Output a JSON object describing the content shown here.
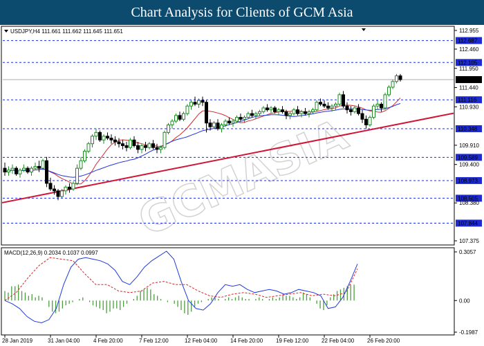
{
  "header": {
    "title": "Chart Analysis for Clients of GCM Asia"
  },
  "watermark": {
    "text": "GCMASIA"
  },
  "colors": {
    "banner": "#0c4a6e",
    "bull": "#1f8b24",
    "bear": "#000000",
    "ma_fast": "#d0302f",
    "ma_slow": "#2233dd",
    "trend": "#d01535",
    "level_line": "#1d2bd0",
    "macd_hist": "#4a9e3d",
    "macd_signal": "#e02020",
    "macd_line": "#1e3adf"
  },
  "chart_data": [
    {
      "type": "candlestick",
      "title": "",
      "info_label": "USDJPY,H4  111.661 111.662 111.645 111.651",
      "ylim": [
        107.375,
        112.955
      ],
      "y_ticks": [
        "112.955",
        "112.460",
        "111.950",
        "111.440",
        "110.930",
        "109.910",
        "109.400",
        "108.380",
        "107.375"
      ],
      "x_tick_labels": [
        "28 Jan 2019",
        "31 Jan 04:00",
        "4 Feb 20:00",
        "7 Feb 12:00",
        "12 Feb 04:00",
        "14 Feb 20:00",
        "19 Feb 12:00",
        "22 Feb 04:00",
        "26 Feb 20:00"
      ],
      "x_tick_index": [
        0,
        12,
        24,
        36,
        48,
        60,
        72,
        84,
        96
      ],
      "current_price": "111.651",
      "levels": [
        "112.687",
        "112.105",
        "111.116",
        "110.348",
        "109.589",
        "108.973",
        "108.505",
        "107.844"
      ],
      "trendline": {
        "from": {
          "index": 0,
          "price": 108.4
        },
        "to": {
          "index": 135,
          "price": 111.1
        }
      },
      "candles": [
        [
          109.3,
          109.45,
          109.1,
          109.2
        ],
        [
          109.2,
          109.35,
          109.1,
          109.25
        ],
        [
          109.25,
          109.4,
          109.15,
          109.3
        ],
        [
          109.3,
          109.35,
          109.1,
          109.15
        ],
        [
          109.15,
          109.3,
          109.05,
          109.25
        ],
        [
          109.25,
          109.4,
          109.2,
          109.3
        ],
        [
          109.3,
          109.35,
          109.15,
          109.2
        ],
        [
          109.2,
          109.35,
          109.1,
          109.3
        ],
        [
          109.3,
          109.45,
          109.25,
          109.35
        ],
        [
          109.35,
          109.5,
          109.2,
          109.3
        ],
        [
          109.3,
          109.55,
          109.25,
          109.5
        ],
        [
          109.5,
          109.6,
          108.8,
          108.9
        ],
        [
          108.9,
          109.05,
          108.7,
          108.75
        ],
        [
          108.75,
          108.85,
          108.6,
          108.7
        ],
        [
          108.7,
          108.75,
          108.45,
          108.55
        ],
        [
          108.55,
          108.75,
          108.5,
          108.7
        ],
        [
          108.7,
          108.85,
          108.6,
          108.8
        ],
        [
          108.8,
          108.9,
          108.65,
          108.75
        ],
        [
          108.75,
          108.95,
          108.7,
          108.9
        ],
        [
          108.9,
          109.4,
          108.85,
          109.3
        ],
        [
          109.3,
          109.6,
          109.25,
          109.5
        ],
        [
          109.5,
          109.8,
          109.45,
          109.75
        ],
        [
          109.75,
          110.0,
          109.7,
          109.95
        ],
        [
          109.95,
          110.2,
          109.85,
          110.15
        ],
        [
          110.15,
          110.35,
          110.05,
          110.25
        ],
        [
          110.25,
          110.3,
          110.0,
          110.05
        ],
        [
          110.05,
          110.2,
          109.95,
          110.15
        ],
        [
          110.15,
          110.25,
          110.05,
          110.1
        ],
        [
          110.1,
          110.2,
          109.95,
          110.05
        ],
        [
          110.05,
          110.15,
          109.9,
          110.0
        ],
        [
          110.0,
          110.1,
          109.85,
          109.95
        ],
        [
          109.95,
          110.05,
          109.8,
          109.9
        ],
        [
          109.9,
          110.0,
          109.75,
          109.85
        ],
        [
          109.85,
          110.1,
          109.8,
          110.05
        ],
        [
          110.05,
          110.15,
          109.85,
          109.9
        ],
        [
          109.9,
          110.0,
          109.7,
          109.8
        ],
        [
          109.8,
          109.95,
          109.7,
          109.9
        ],
        [
          109.9,
          110.0,
          109.75,
          109.85
        ],
        [
          109.85,
          110.0,
          109.8,
          109.95
        ],
        [
          109.95,
          110.05,
          109.8,
          109.85
        ],
        [
          109.85,
          109.95,
          109.7,
          109.8
        ],
        [
          109.8,
          109.9,
          109.7,
          109.85
        ],
        [
          109.85,
          110.3,
          109.8,
          110.25
        ],
        [
          110.25,
          110.5,
          110.2,
          110.45
        ],
        [
          110.45,
          110.6,
          110.35,
          110.55
        ],
        [
          110.55,
          110.75,
          110.5,
          110.7
        ],
        [
          110.7,
          110.8,
          110.55,
          110.6
        ],
        [
          110.6,
          110.8,
          110.55,
          110.75
        ],
        [
          110.75,
          111.0,
          110.7,
          110.95
        ],
        [
          110.95,
          111.1,
          110.85,
          111.05
        ],
        [
          111.05,
          111.2,
          110.95,
          111.0
        ],
        [
          111.0,
          111.15,
          110.9,
          111.1
        ],
        [
          111.1,
          111.2,
          110.95,
          111.05
        ],
        [
          111.05,
          111.1,
          110.25,
          110.5
        ],
        [
          110.5,
          110.6,
          110.3,
          110.4
        ],
        [
          110.4,
          110.55,
          110.35,
          110.5
        ],
        [
          110.5,
          110.6,
          110.3,
          110.35
        ],
        [
          110.35,
          110.5,
          110.25,
          110.45
        ],
        [
          110.45,
          110.6,
          110.4,
          110.55
        ],
        [
          110.55,
          110.65,
          110.45,
          110.5
        ],
        [
          110.5,
          110.6,
          110.4,
          110.55
        ],
        [
          110.55,
          110.7,
          110.5,
          110.65
        ],
        [
          110.65,
          110.75,
          110.55,
          110.6
        ],
        [
          110.6,
          110.7,
          110.5,
          110.65
        ],
        [
          110.65,
          110.8,
          110.6,
          110.75
        ],
        [
          110.75,
          110.85,
          110.65,
          110.7
        ],
        [
          110.7,
          110.8,
          110.6,
          110.75
        ],
        [
          110.75,
          110.85,
          110.7,
          110.8
        ],
        [
          110.8,
          110.95,
          110.75,
          110.9
        ],
        [
          110.9,
          111.0,
          110.8,
          110.85
        ],
        [
          110.85,
          110.95,
          110.75,
          110.9
        ],
        [
          110.9,
          110.95,
          110.75,
          110.8
        ],
        [
          110.8,
          110.9,
          110.7,
          110.85
        ],
        [
          110.85,
          110.95,
          110.75,
          110.8
        ],
        [
          110.8,
          110.85,
          110.6,
          110.7
        ],
        [
          110.7,
          110.8,
          110.6,
          110.75
        ],
        [
          110.75,
          110.9,
          110.7,
          110.85
        ],
        [
          110.85,
          110.95,
          110.7,
          110.75
        ],
        [
          110.75,
          110.85,
          110.65,
          110.8
        ],
        [
          110.8,
          110.9,
          110.7,
          110.75
        ],
        [
          110.75,
          110.85,
          110.65,
          110.8
        ],
        [
          110.8,
          110.9,
          110.75,
          110.85
        ],
        [
          110.85,
          111.1,
          110.8,
          111.05
        ],
        [
          111.05,
          111.15,
          110.95,
          111.0
        ],
        [
          111.0,
          111.1,
          110.9,
          110.95
        ],
        [
          110.95,
          111.05,
          110.85,
          110.9
        ],
        [
          110.9,
          111.0,
          110.8,
          110.95
        ],
        [
          110.95,
          111.05,
          110.85,
          111.0
        ],
        [
          111.0,
          111.3,
          110.95,
          111.25
        ],
        [
          111.25,
          111.35,
          110.9,
          110.95
        ],
        [
          110.95,
          111.05,
          110.75,
          110.85
        ],
        [
          110.85,
          110.95,
          110.7,
          110.8
        ],
        [
          110.8,
          110.95,
          110.75,
          110.9
        ],
        [
          110.9,
          111.0,
          110.7,
          110.75
        ],
        [
          110.75,
          110.85,
          110.5,
          110.6
        ],
        [
          110.6,
          110.7,
          110.35,
          110.45
        ],
        [
          110.45,
          110.7,
          110.4,
          110.65
        ],
        [
          110.65,
          111.0,
          110.6,
          110.95
        ],
        [
          110.95,
          111.1,
          110.85,
          111.0
        ],
        [
          111.0,
          111.05,
          110.8,
          110.9
        ],
        [
          110.9,
          111.3,
          110.85,
          111.25
        ],
        [
          111.25,
          111.5,
          111.2,
          111.45
        ],
        [
          111.45,
          111.65,
          111.4,
          111.6
        ],
        [
          111.6,
          111.8,
          111.55,
          111.75
        ],
        [
          111.75,
          111.8,
          111.6,
          111.651
        ]
      ]
    },
    {
      "type": "line",
      "title": "",
      "info_label": "MACD(12,26,9)  0.2034  0.1037  0.0997",
      "ylim": [
        -0.1987,
        0.3057
      ],
      "y_ticks": [
        "0.3057",
        "0.00",
        "-0.1987"
      ],
      "series": [
        {
          "values": [
            0.0,
            0.05,
            0.14,
            0.22,
            0.27,
            0.26,
            0.25,
            0.17,
            0.1,
            0.1,
            0.06,
            0.05,
            0.06,
            0.11,
            0.12,
            0.1,
            0.1,
            0.06,
            0.03,
            0.02,
            0.04,
            0.05,
            0.04,
            0.02,
            0.03,
            0.04,
            0.05,
            0.03,
            0.04,
            0.03,
            0.05,
            0.2
          ]
        },
        {
          "values": [
            0.0,
            -0.02,
            -0.05,
            -0.1,
            -0.13,
            -0.14,
            -0.12,
            -0.05,
            0.1,
            0.21,
            0.26,
            0.27,
            0.26,
            0.25,
            0.23,
            0.19,
            0.12,
            0.1,
            0.15,
            0.21,
            0.25,
            0.28,
            0.31,
            0.26,
            0.12,
            0.0,
            -0.05,
            -0.06,
            -0.02,
            0.05,
            0.1,
            0.09,
            0.1,
            0.07,
            0.05,
            0.06,
            0.07,
            0.06,
            0.04,
            0.05,
            0.07,
            0.06,
            0.05,
            0.03,
            -0.05,
            -0.04,
            0.02,
            0.12,
            0.23
          ]
        },
        {
          "values": [
            0.06,
            0.05,
            0.09,
            0.09,
            0.1,
            0.06,
            0.05,
            0.03,
            0.04,
            0.02,
            0.03,
            0.02,
            0.0,
            -0.04,
            -0.07,
            -0.08,
            -0.07,
            -0.05,
            -0.03,
            -0.02,
            -0.01,
            0.0,
            0.01,
            0.02,
            0.0,
            -0.01,
            -0.03,
            -0.04,
            -0.05,
            -0.06,
            -0.08,
            -0.07,
            -0.05,
            -0.05,
            -0.06,
            -0.04,
            -0.02,
            0.0,
            0.01,
            0.03,
            0.06,
            0.07,
            0.08,
            0.07,
            0.04,
            0.03,
            0.01,
            0.0,
            -0.01,
            0.0,
            -0.02,
            -0.04,
            -0.06,
            -0.08,
            -0.09,
            -0.07,
            -0.04,
            -0.02,
            -0.01,
            0.0,
            0.01,
            0.02,
            0.02,
            0.01,
            0.0,
            0.01,
            0.02,
            0.01,
            0.02,
            0.03,
            0.02,
            0.01,
            0.01,
            0.0,
            0.01,
            0.02,
            0.01,
            0.0,
            0.01,
            0.02,
            0.01,
            0.02,
            0.04,
            0.03,
            0.03,
            0.02,
            0.01,
            0.02,
            0.05,
            0.04,
            0.02,
            0.0,
            -0.02,
            -0.05,
            -0.06,
            -0.03,
            0.02,
            0.04,
            0.06,
            0.07,
            0.08,
            0.09,
            0.1,
            0.1
          ]
        }
      ]
    }
  ]
}
